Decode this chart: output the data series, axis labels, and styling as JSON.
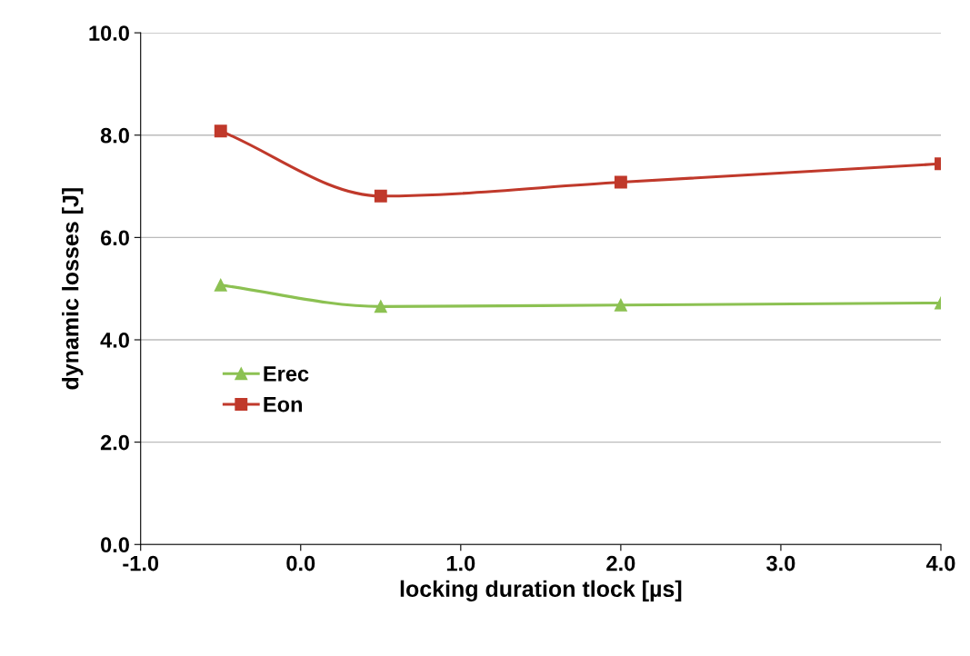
{
  "chart_data": {
    "type": "line",
    "xlabel": "locking duration tlock [µs]",
    "ylabel": "dynamic losses [J]",
    "x": [
      -0.5,
      0.5,
      2.0,
      4.0
    ],
    "series": [
      {
        "name": "Erec",
        "color": "#8cc152",
        "marker": "triangle",
        "values": [
          5.07,
          4.65,
          4.68,
          4.72
        ]
      },
      {
        "name": "Eon",
        "color": "#c0392b",
        "marker": "square",
        "values": [
          8.08,
          6.81,
          7.08,
          7.44
        ]
      }
    ],
    "xlim": [
      -1.0,
      4.0
    ],
    "xticks": [
      {
        "value": -1.0,
        "label": "-1.0"
      },
      {
        "value": 0.0,
        "label": "0.0"
      },
      {
        "value": 1.0,
        "label": "1.0"
      },
      {
        "value": 2.0,
        "label": "2.0"
      },
      {
        "value": 3.0,
        "label": "3.0"
      },
      {
        "value": 4.0,
        "label": "4.0"
      }
    ],
    "ylim": [
      0.0,
      10.0
    ],
    "yticks": [
      {
        "value": 0.0,
        "label": "0.0"
      },
      {
        "value": 2.0,
        "label": "2.0"
      },
      {
        "value": 4.0,
        "label": "4.0"
      },
      {
        "value": 6.0,
        "label": "6.0"
      },
      {
        "value": 8.0,
        "label": "8.0"
      },
      {
        "value": 10.0,
        "label": "10.0"
      }
    ],
    "grid": "y",
    "legend": "left",
    "line_style": "solid"
  }
}
